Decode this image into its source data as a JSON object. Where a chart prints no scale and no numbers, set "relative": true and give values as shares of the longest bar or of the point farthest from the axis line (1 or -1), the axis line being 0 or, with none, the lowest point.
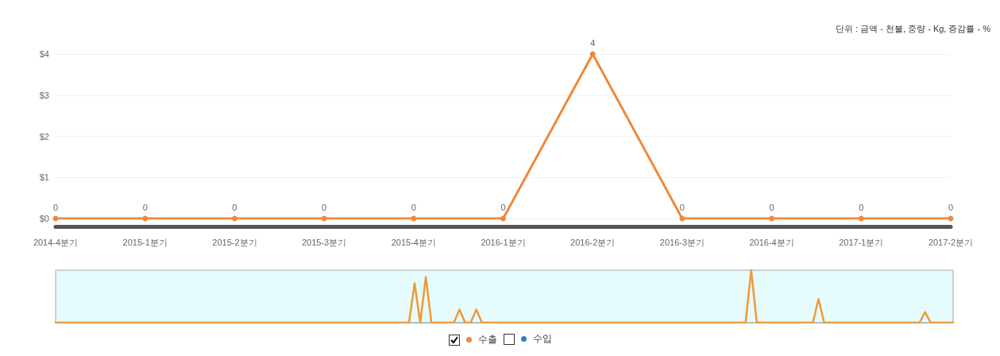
{
  "chart_data": [
    {
      "type": "line",
      "categories": [
        "2014-4분기",
        "2015-1분기",
        "2015-2분기",
        "2015-3분기",
        "2015-4분기",
        "2016-1분기",
        "2016-2분기",
        "2016-3분기",
        "2016-4분기",
        "2017-1분기",
        "2017-2분기"
      ],
      "series": [
        {
          "name": "수출",
          "color": "#f0883a",
          "values": [
            0,
            0,
            0,
            0,
            0,
            0,
            4,
            0,
            0,
            0,
            0
          ]
        },
        {
          "name": "수입",
          "color": "#2f7ed8",
          "values": [
            null,
            null,
            null,
            null,
            null,
            null,
            null,
            null,
            null,
            null,
            null
          ]
        }
      ],
      "ylim": [
        0,
        4
      ],
      "yticks": [
        {
          "value": 0,
          "label": "$0"
        },
        {
          "value": 1,
          "label": "$1"
        },
        {
          "value": 2,
          "label": "$2"
        },
        {
          "value": 3,
          "label": "$3"
        },
        {
          "value": 4,
          "label": "$4"
        }
      ],
      "grid": "y",
      "marker": "circle",
      "line_style": "solid",
      "data_labels": true,
      "legend": "bottom",
      "annotations": [
        "단위 : 금액 - 천불, 중량 - Kg, 증감률 - %"
      ]
    },
    {
      "type": "line",
      "relative": true,
      "categories": [
        null,
        null,
        null,
        null,
        null,
        null,
        null,
        null,
        null,
        null,
        null,
        null,
        null,
        null,
        null,
        null,
        null,
        null,
        null,
        null,
        null,
        null,
        null,
        null,
        null,
        null,
        null,
        null,
        null,
        null,
        null,
        null,
        null,
        null,
        null,
        null,
        null,
        null,
        null,
        null,
        null,
        null,
        null,
        null,
        null,
        null,
        null,
        null,
        null,
        null,
        null,
        null,
        null,
        null,
        null,
        null,
        null,
        null,
        null,
        null,
        null,
        null,
        null,
        null,
        null,
        null,
        null,
        null,
        null,
        null,
        null,
        null,
        null,
        null,
        null,
        null,
        null,
        null,
        null,
        null,
        null,
        null,
        null,
        null,
        null,
        null,
        null,
        null,
        null,
        null,
        null,
        null,
        null,
        null,
        null,
        null,
        null,
        null,
        null,
        null,
        null,
        null,
        null,
        null,
        null,
        null,
        null,
        null,
        null,
        null,
        null,
        null,
        null,
        null,
        null,
        null,
        null,
        null,
        null,
        null,
        null,
        null,
        null,
        null,
        null,
        null,
        null,
        null,
        null,
        null,
        null,
        null,
        null,
        null,
        null,
        null,
        null,
        null,
        null,
        null,
        null,
        null,
        null,
        null,
        null,
        null,
        null,
        null,
        null,
        null,
        null,
        null,
        null,
        null,
        null,
        null,
        null,
        null,
        null,
        null,
        null
      ],
      "series": [
        {
          "color": "#ee9a3a",
          "values": [
            0,
            0,
            0,
            0,
            0,
            0,
            0,
            0,
            0,
            0,
            0,
            0,
            0,
            0,
            0,
            0,
            0,
            0,
            0,
            0,
            0,
            0,
            0,
            0,
            0,
            0,
            0,
            0,
            0,
            0,
            0,
            0,
            0,
            0,
            0,
            0,
            0,
            0,
            0,
            0,
            0,
            0,
            0,
            0,
            0,
            0,
            0,
            0,
            0,
            0,
            0,
            0,
            0,
            0,
            0,
            0,
            0,
            0,
            0,
            0,
            0,
            0,
            0,
            0,
            0.75,
            0,
            0.87,
            0,
            0,
            0,
            0,
            0,
            0.25,
            0,
            0,
            0.25,
            0,
            0,
            0,
            0,
            0,
            0,
            0,
            0,
            0,
            0,
            0,
            0,
            0,
            0,
            0,
            0,
            0,
            0,
            0,
            0,
            0,
            0,
            0,
            0,
            0,
            0,
            0,
            0,
            0,
            0,
            0,
            0,
            0,
            0,
            0,
            0,
            0,
            0,
            0,
            0,
            0,
            0,
            0,
            0,
            0,
            0,
            0,
            0,
            1,
            0,
            0,
            0,
            0,
            0,
            0,
            0,
            0,
            0,
            0,
            0,
            0.45,
            0,
            0,
            0,
            0,
            0,
            0,
            0,
            0,
            0,
            0,
            0,
            0,
            0,
            0,
            0,
            0,
            0,
            0,
            0.2,
            0,
            0,
            0,
            0,
            0
          ]
        }
      ]
    }
  ]
}
